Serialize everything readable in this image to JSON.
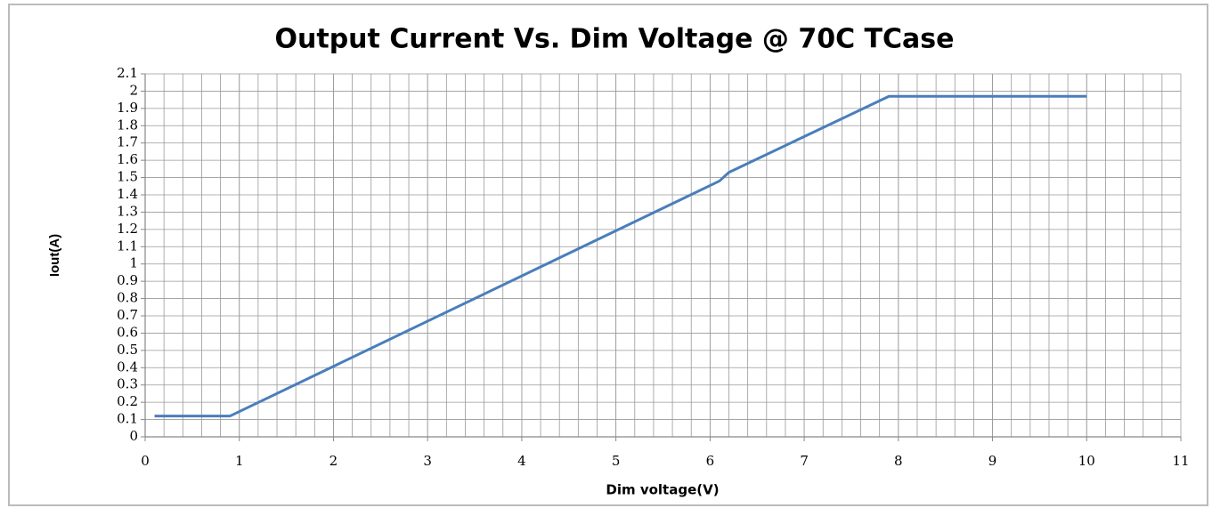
{
  "chart_data": {
    "type": "line",
    "title": "Output Current Vs. Dim Voltage @ 70C TCase",
    "x_label": "Dim voltage(V)",
    "y_label": "Iout(A)",
    "series": [
      {
        "name": "Iout",
        "color": "#4a7ebb",
        "x": [
          0.1,
          0.9,
          6.1,
          6.2,
          7.9,
          10
        ],
        "values": [
          0.12,
          0.12,
          1.48,
          1.53,
          1.97,
          1.97
        ]
      }
    ],
    "xlim": [
      0,
      11
    ],
    "xticks": [
      0,
      1,
      2,
      3,
      4,
      5,
      6,
      7,
      8,
      9,
      10,
      11
    ],
    "ylim": [
      0,
      2.1
    ],
    "yticks": [
      0,
      0.1,
      0.2,
      0.3,
      0.4,
      0.5,
      0.6,
      0.7,
      0.8,
      0.9,
      1,
      1.1,
      1.2,
      1.3,
      1.4,
      1.5,
      1.6,
      1.7,
      1.8,
      1.9,
      2,
      2.1
    ],
    "grid": true,
    "minor_grid_step": 0.2
  }
}
